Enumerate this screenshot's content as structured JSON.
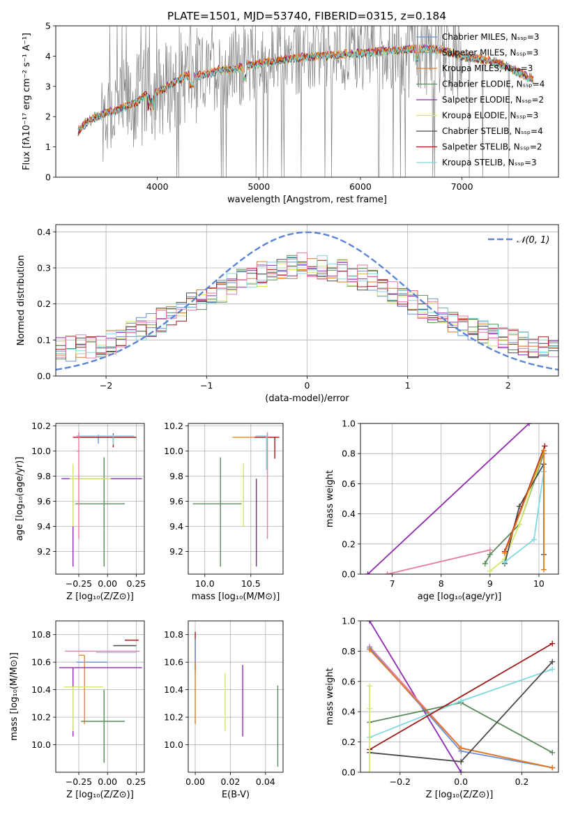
{
  "figure_title": "PLATE=1501, MJD=53740, FIBERID=0315, z=0.184",
  "colors": {
    "Chabrier MILES": "#6b8fd6",
    "Salpeter MILES": "#e28a2e",
    "Kroupa MILES": "#e07a20",
    "Chabrier ELODIE": "#5a8a5a",
    "Salpeter ELODIE": "#8e2ab0",
    "Kroupa ELODIE": "#d4e86a",
    "Chabrier STELIB": "#4a4a4a",
    "Salpeter STELIB": "#a01818",
    "Kroupa STELIB": "#7fd8dc",
    "pink": "#e87aa8",
    "data": "#808080"
  },
  "chart_data": [
    {
      "id": "spectrum",
      "type": "line",
      "title": "PLATE=1501, MJD=53740, FIBERID=0315, z=0.184",
      "xlabel": "wavelength [Angstrom, rest frame]",
      "ylabel": "Flux [fλ10⁻¹⁷ erg cm⁻² s⁻¹ A⁻¹]",
      "xlim": [
        3000,
        7950
      ],
      "ylim": [
        0,
        5
      ],
      "xticks": [
        4000,
        5000,
        6000,
        7000
      ],
      "yticks": [
        0,
        1,
        2,
        3,
        4,
        5
      ],
      "legend": "right",
      "legend_entries": [
        "Chabrier MILES, Nₛₛₚ=3",
        "Salpeter MILES, Nₛₛₚ=3",
        "Kroupa MILES, Nₛₛₚ=3",
        "Chabrier ELODIE, Nₛₛₚ=4",
        "Salpeter ELODIE, Nₛₛₚ=2",
        "Kroupa ELODIE, Nₛₛₚ=3",
        "Chabrier STELIB, Nₛₛₚ=4",
        "Salpeter STELIB, Nₛₛₚ=2",
        "Kroupa STELIB, Nₛₛₚ=3"
      ],
      "model_continuum": {
        "x": [
          3220,
          3300,
          3400,
          3500,
          3600,
          3700,
          3800,
          3900,
          4000,
          4100,
          4200,
          4300,
          4400,
          4500,
          4600,
          4700,
          4800,
          4900,
          5000,
          5200,
          5400,
          5600,
          5800,
          6000,
          6200,
          6400,
          6600,
          6800,
          7000,
          7200,
          7400,
          7600,
          7700
        ],
        "y": [
          1.5,
          1.8,
          2.0,
          2.15,
          2.2,
          2.35,
          2.5,
          2.75,
          2.8,
          3.0,
          3.2,
          3.35,
          3.35,
          3.4,
          3.55,
          3.55,
          3.6,
          3.7,
          3.75,
          3.85,
          3.95,
          4.0,
          4.05,
          4.1,
          4.15,
          4.2,
          4.25,
          4.2,
          4.0,
          3.9,
          3.7,
          3.4,
          3.2
        ]
      },
      "data_x_range": [
        3220,
        7700
      ]
    },
    {
      "id": "residual_hist",
      "type": "line",
      "xlabel": "(data-model)/error",
      "ylabel": "Normed distribution",
      "xlim": [
        -2.5,
        2.5
      ],
      "ylim": [
        0,
        0.42
      ],
      "xticks": [
        -2,
        -1,
        0,
        1,
        2
      ],
      "yticks": [
        0.0,
        0.1,
        0.2,
        0.3,
        0.4
      ],
      "legend": "top-right",
      "legend_entries": [
        "𝒩(0, 1)"
      ],
      "gaussian": {
        "mu": 0,
        "sigma": 1
      },
      "histogram_envelope": {
        "x": [
          -2.5,
          -2.0,
          -1.5,
          -1.0,
          -0.5,
          0.0,
          0.5,
          1.0,
          1.5,
          2.0,
          2.5
        ],
        "y": [
          0.07,
          0.09,
          0.15,
          0.22,
          0.28,
          0.31,
          0.28,
          0.21,
          0.15,
          0.1,
          0.07
        ]
      }
    },
    {
      "id": "age_vs_Z",
      "type": "scatter",
      "xlabel": "Z [log₁₀(Z/Z⊙)]",
      "ylabel": "age  [log₁₀(age/yr)]",
      "xlim": [
        -0.45,
        0.32
      ],
      "ylim": [
        9.02,
        10.22
      ],
      "xticks": [
        -0.25,
        0.0,
        0.25
      ],
      "yticks": [
        9.2,
        9.4,
        9.6,
        9.8,
        10.0,
        10.2
      ],
      "points": [
        {
          "name": "Chabrier MILES",
          "x": -0.08,
          "xerr": [
            0.17,
            0.12
          ],
          "y": 10.11,
          "yerr": [
            0.05,
            0.02
          ]
        },
        {
          "name": "Salpeter MILES",
          "x": -0.05,
          "xerr": [
            0.21,
            0.3
          ],
          "y": 10.11,
          "yerr": [
            0.0,
            0.0
          ]
        },
        {
          "name": "Kroupa MILES",
          "x": -0.05,
          "xerr": [
            0.2,
            0.28
          ],
          "y": 10.11,
          "yerr": [
            0.0,
            0.0
          ]
        },
        {
          "name": "Chabrier ELODIE",
          "x": -0.03,
          "xerr": [
            0.25,
            0.18
          ],
          "y": 9.58,
          "yerr": [
            0.5,
            0.37
          ]
        },
        {
          "name": "Salpeter ELODIE",
          "x": -0.3,
          "xerr": [
            0.1,
            0.6
          ],
          "y": 9.78,
          "yerr": [
            0.7,
            0.0
          ]
        },
        {
          "name": "Kroupa ELODIE",
          "x": -0.3,
          "xerr": [
            0.03,
            0.33
          ],
          "y": 9.78,
          "yerr": [
            0.38,
            0.12
          ]
        },
        {
          "name": "Chabrier STELIB",
          "x": 0.05,
          "xerr": [
            0.28,
            0.19
          ],
          "y": 10.11,
          "yerr": [
            0.01,
            0.03
          ]
        },
        {
          "name": "Salpeter STELIB",
          "x": 0.05,
          "xerr": [
            0.35,
            0.2
          ],
          "y": 10.11,
          "yerr": [
            0.08,
            0.0
          ]
        },
        {
          "name": "Kroupa STELIB",
          "x": 0.05,
          "xerr": [
            0.32,
            0.18
          ],
          "y": 10.12,
          "yerr": [
            0.07,
            0.01
          ]
        },
        {
          "name": "pink",
          "x": -0.25,
          "xerr": [
            0.02,
            0.0
          ],
          "y": 10.0,
          "yerr": [
            0.7,
            0.15
          ]
        }
      ]
    },
    {
      "id": "age_vs_mass",
      "type": "scatter",
      "xlabel": "mass [log₁₀(M/M⊙)]",
      "ylabel": "",
      "xlim": [
        9.82,
        10.85
      ],
      "ylim": [
        9.02,
        10.22
      ],
      "xticks": [
        10.0,
        10.5
      ],
      "yticks": [
        9.2,
        9.4,
        9.6,
        9.8,
        10.0,
        10.2
      ],
      "points": [
        {
          "name": "Chabrier MILES",
          "x": 10.6,
          "xerr": [
            0.0,
            0.08
          ],
          "y": 10.11,
          "yerr": [
            0.0,
            0.0
          ]
        },
        {
          "name": "Salpeter MILES",
          "x": 10.65,
          "xerr": [
            0.35,
            0.12
          ],
          "y": 10.11,
          "yerr": [
            0.0,
            0.0
          ]
        },
        {
          "name": "Chabrier ELODIE",
          "x": 10.17,
          "xerr": [
            0.3,
            0.23
          ],
          "y": 9.58,
          "yerr": [
            0.5,
            0.37
          ]
        },
        {
          "name": "Salpeter ELODIE",
          "x": 10.56,
          "xerr": [
            0.0,
            0.0
          ],
          "y": 9.78,
          "yerr": [
            0.7,
            0.0
          ]
        },
        {
          "name": "Kroupa ELODIE",
          "x": 10.42,
          "xerr": [
            0.0,
            0.0
          ],
          "y": 9.78,
          "yerr": [
            0.38,
            0.12
          ]
        },
        {
          "name": "Chabrier STELIB",
          "x": 10.72,
          "xerr": [
            0.0,
            0.0
          ],
          "y": 10.11,
          "yerr": [
            0.0,
            0.0
          ]
        },
        {
          "name": "Salpeter STELIB",
          "x": 10.76,
          "xerr": [
            0.22,
            0.05
          ],
          "y": 10.11,
          "yerr": [
            0.17,
            0.0
          ]
        },
        {
          "name": "Kroupa STELIB",
          "x": 10.67,
          "xerr": [
            0.12,
            0.0
          ],
          "y": 10.12,
          "yerr": [
            0.27,
            0.0
          ]
        },
        {
          "name": "pink",
          "x": 10.68,
          "xerr": [
            0.0,
            0.0
          ],
          "y": 10.0,
          "yerr": [
            0.7,
            0.15
          ]
        }
      ]
    },
    {
      "id": "mass_weight_vs_age",
      "type": "line",
      "xlabel": "age  [log₁₀(age/yr)]",
      "ylabel": "mass weight",
      "xlim": [
        6.35,
        10.4
      ],
      "ylim": [
        0,
        1
      ],
      "xticks": [
        7,
        8,
        9,
        10
      ],
      "yticks": [
        0.0,
        0.2,
        0.4,
        0.6,
        0.8,
        1.0
      ],
      "series": [
        {
          "name": "Salpeter ELODIE",
          "x": [
            6.5,
            9.8
          ],
          "y": [
            0.0,
            1.0
          ]
        },
        {
          "name": "pink",
          "x": [
            6.9,
            9.0
          ],
          "y": [
            0.0,
            0.16
          ]
        },
        {
          "name": "Chabrier ELODIE",
          "x": [
            8.9,
            9.0,
            9.6,
            10.1
          ],
          "y": [
            0.07,
            0.13,
            0.33,
            0.8
          ]
        },
        {
          "name": "Kroupa ELODIE",
          "x": [
            9.0,
            9.3,
            9.6,
            10.1
          ],
          "y": [
            0.02,
            0.1,
            0.33,
            0.82
          ]
        },
        {
          "name": "Chabrier STELIB",
          "x": [
            9.3,
            9.6,
            10.1,
            10.1
          ],
          "y": [
            0.07,
            0.45,
            0.73,
            0.13
          ]
        },
        {
          "name": "Salpeter STELIB",
          "x": [
            9.3,
            10.12
          ],
          "y": [
            0.15,
            0.85
          ]
        },
        {
          "name": "Kroupa STELIB",
          "x": [
            9.3,
            9.9,
            10.1
          ],
          "y": [
            0.08,
            0.23,
            0.68
          ]
        },
        {
          "name": "Kroupa MILES",
          "x": [
            9.3,
            10.1,
            10.1
          ],
          "y": [
            0.14,
            0.82,
            0.03
          ]
        }
      ]
    },
    {
      "id": "mass_vs_Z",
      "type": "scatter",
      "xlabel": "Z [log₁₀(Z/Z⊙)]",
      "ylabel": "mass [log₁₀(M/M⊙)]",
      "xlim": [
        -0.45,
        0.32
      ],
      "ylim": [
        9.8,
        10.9
      ],
      "xticks": [
        -0.25,
        0.0,
        0.25
      ],
      "yticks": [
        10.0,
        10.2,
        10.4,
        10.6,
        10.8
      ],
      "points": [
        {
          "name": "Chabrier MILES",
          "x": -0.12,
          "xerr": [
            0.15,
            0.12
          ],
          "y": 10.6,
          "yerr": [
            0.0,
            0.0
          ]
        },
        {
          "name": "Salpeter MILES",
          "x": -0.2,
          "xerr": [
            0.05,
            0.0
          ],
          "y": 10.65,
          "yerr": [
            0.5,
            0.0
          ]
        },
        {
          "name": "Chabrier ELODIE",
          "x": -0.03,
          "xerr": [
            0.2,
            0.18
          ],
          "y": 10.17,
          "yerr": [
            0.3,
            0.23
          ]
        },
        {
          "name": "Salpeter ELODIE",
          "x": -0.3,
          "xerr": [
            0.12,
            0.6
          ],
          "y": 10.56,
          "yerr": [
            0.5,
            0.0
          ]
        },
        {
          "name": "Kroupa ELODIE",
          "x": -0.3,
          "xerr": [
            0.08,
            0.26
          ],
          "y": 10.42,
          "yerr": [
            0.32,
            0.0
          ]
        },
        {
          "name": "Chabrier STELIB",
          "x": 0.05,
          "xerr": [
            0.0,
            0.2
          ],
          "y": 10.72,
          "yerr": [
            0.0,
            0.0
          ]
        },
        {
          "name": "Salpeter STELIB",
          "x": 0.15,
          "xerr": [
            0.0,
            0.12
          ],
          "y": 10.76,
          "yerr": [
            0.0,
            0.0
          ]
        },
        {
          "name": "Kroupa STELIB",
          "x": 0.1,
          "xerr": [
            0.2,
            0.15
          ],
          "y": 10.67,
          "yerr": [
            0.0,
            0.0
          ]
        },
        {
          "name": "pink",
          "x": -0.05,
          "xerr": [
            0.32,
            0.33
          ],
          "y": 10.68,
          "yerr": [
            0.0,
            0.0
          ]
        }
      ]
    },
    {
      "id": "mass_vs_ebv",
      "type": "scatter",
      "xlabel": "E(B-V)",
      "ylabel": "",
      "xlim": [
        -0.004,
        0.05
      ],
      "ylim": [
        9.8,
        10.9
      ],
      "xticks": [
        0.0,
        0.02,
        0.04
      ],
      "yticks": [
        10.0,
        10.2,
        10.4,
        10.6,
        10.8
      ],
      "points": [
        {
          "name": "Salpeter STELIB",
          "x": 0.0,
          "xerr": [
            0.0,
            0.0
          ],
          "y": 10.65,
          "yerr": [
            0.1,
            0.17
          ]
        },
        {
          "name": "Chabrier MILES",
          "x": 0.0,
          "xerr": [
            0.0,
            0.0
          ],
          "y": 10.6,
          "yerr": [
            0.07,
            0.17
          ]
        },
        {
          "name": "Kroupa MILES",
          "x": 0.0,
          "xerr": [
            0.0,
            0.0
          ],
          "y": 10.3,
          "yerr": [
            0.15,
            0.3
          ]
        },
        {
          "name": "Kroupa ELODIE",
          "x": 0.017,
          "xerr": [
            0.0,
            0.0
          ],
          "y": 10.3,
          "yerr": [
            0.2,
            0.22
          ]
        },
        {
          "name": "Salpeter ELODIE",
          "x": 0.027,
          "xerr": [
            0.0,
            0.0
          ],
          "y": 10.32,
          "yerr": [
            0.26,
            0.26
          ]
        },
        {
          "name": "Chabrier ELODIE",
          "x": 0.047,
          "xerr": [
            0.0,
            0.0
          ],
          "y": 10.14,
          "yerr": [
            0.3,
            0.29
          ]
        }
      ]
    },
    {
      "id": "mass_weight_vs_Z",
      "type": "line",
      "xlabel": "Z [log₁₀(Z/Z⊙)]",
      "ylabel": "mass weight",
      "xlim": [
        -0.33,
        0.32
      ],
      "ylim": [
        0,
        1
      ],
      "xticks": [
        -0.2,
        0.0,
        0.2
      ],
      "yticks": [
        0.0,
        0.2,
        0.4,
        0.6,
        0.8,
        1.0
      ],
      "series": [
        {
          "name": "Salpeter ELODIE",
          "x": [
            -0.3,
            0.0
          ],
          "y": [
            1.0,
            0.0
          ]
        },
        {
          "name": "pink",
          "x": [
            -0.3,
            0.0,
            0.3
          ],
          "y": [
            0.83,
            0.16,
            0.03
          ]
        },
        {
          "name": "Chabrier MILES",
          "x": [
            -0.3,
            0.0,
            0.3
          ],
          "y": [
            0.82,
            0.14,
            0.03
          ]
        },
        {
          "name": "Kroupa MILES",
          "x": [
            -0.3,
            0.0,
            0.3
          ],
          "y": [
            0.81,
            0.16,
            0.03
          ]
        },
        {
          "name": "Chabrier ELODIE",
          "x": [
            -0.3,
            0.0,
            0.3
          ],
          "y": [
            0.33,
            0.46,
            0.13
          ]
        },
        {
          "name": "Kroupa STELIB",
          "x": [
            -0.3,
            0.0,
            0.3
          ],
          "y": [
            0.23,
            0.47,
            0.68
          ]
        },
        {
          "name": "Salpeter STELIB",
          "x": [
            -0.3,
            0.3
          ],
          "y": [
            0.15,
            0.85
          ]
        },
        {
          "name": "Chabrier STELIB",
          "x": [
            -0.3,
            0.0,
            0.3
          ],
          "y": [
            0.13,
            0.07,
            0.73
          ]
        },
        {
          "name": "Kroupa ELODIE",
          "x": [
            -0.3,
            -0.3,
            -0.3
          ],
          "y": [
            0.57,
            0.42,
            0.0
          ]
        }
      ]
    }
  ]
}
